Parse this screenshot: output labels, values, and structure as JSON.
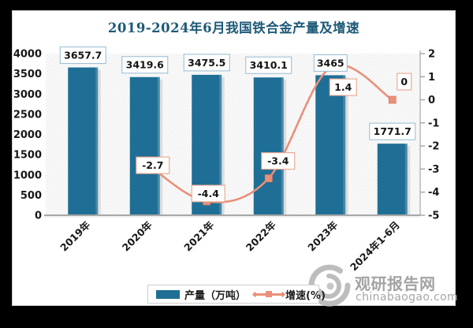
{
  "title": "2019-2024年6月我国铁合金产量及增速",
  "chart_data": {
    "type": "bar",
    "title": "2019-2024年6月我国铁合金产量及增速",
    "categories": [
      "2019年",
      "2020年",
      "2021年",
      "2022年",
      "2023年",
      "2024年1-6月"
    ],
    "series": [
      {
        "name": "产量（万吨）",
        "type": "bar",
        "axis": "left",
        "values": [
          3657.7,
          3419.6,
          3475.5,
          3410.1,
          3465,
          1771.7
        ]
      },
      {
        "name": "增速(%)",
        "type": "line",
        "axis": "right",
        "values": [
          null,
          -2.7,
          -4.4,
          -3.4,
          1.4,
          0
        ]
      }
    ],
    "left_axis": {
      "min": 0,
      "max": 4000,
      "ticks": [
        0,
        500,
        1000,
        1500,
        2000,
        2500,
        3000,
        3500,
        4000
      ]
    },
    "right_axis": {
      "min": -5,
      "max": 2,
      "ticks": [
        2,
        1,
        0,
        -1,
        -2,
        -3,
        -4,
        -5
      ]
    },
    "grid": false,
    "legend_position": "bottom",
    "data_labels": true
  },
  "legend": {
    "bar_label": "产量（万吨）",
    "line_label": "增速(%)"
  },
  "watermark": {
    "logo": "guanyan-swirl-logo",
    "name": "观研报告网",
    "domain": "chinabaogao.com"
  },
  "colors": {
    "bar": "#1f6e96",
    "line": "#e8907a",
    "marker": "#e8907a",
    "title": "#1e5a78",
    "bar_label_border": "#9fc0d6",
    "line_label_border": "#e9a58d",
    "label_text": "#141414",
    "axis_text": "#171717",
    "axis_line": "#a8a8a8",
    "hatch": "#ebebeb",
    "watermark_grey": "#b5b5b5"
  }
}
